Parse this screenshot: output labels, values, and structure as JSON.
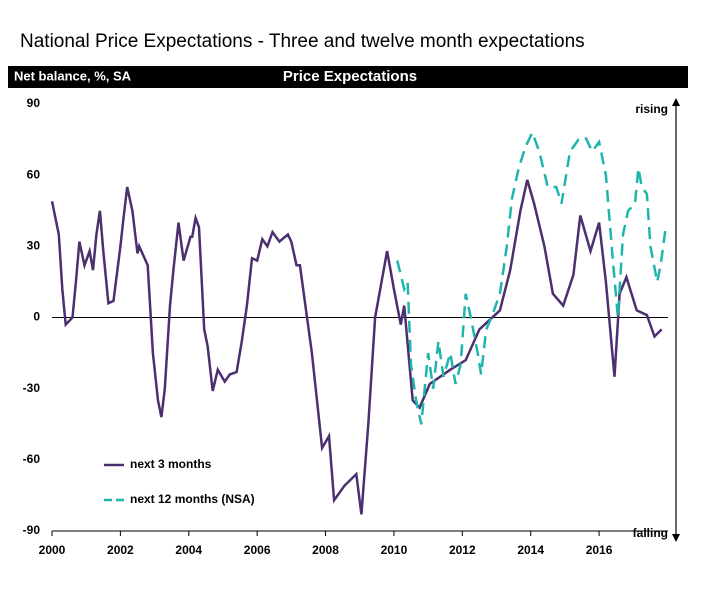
{
  "chart_data": {
    "type": "line",
    "title": "National Price Expectations - Three and twelve month expectations",
    "subtitle": "Price Expectations",
    "y_label": "Net balance, %, SA",
    "annotations": [
      "rising",
      "falling"
    ],
    "xlim": [
      2000,
      2018.25
    ],
    "xticks": [
      2000,
      2002,
      2004,
      2006,
      2008,
      2010,
      2012,
      2014,
      2016
    ],
    "ylim": [
      -90,
      90
    ],
    "yticks": [
      -90,
      -60,
      -30,
      0,
      30,
      60,
      90
    ],
    "grid": false,
    "legend": "lower left",
    "series": [
      {
        "name": "next 3 months",
        "color": "#4b2f6e",
        "x": [
          2000.0,
          2000.2,
          2000.3,
          2000.4,
          2000.6,
          2000.7,
          2000.8,
          2000.95,
          2001.1,
          2001.2,
          2001.3,
          2001.4,
          2001.5,
          2001.65,
          2001.8,
          2002.0,
          2002.1,
          2002.2,
          2002.35,
          2002.5,
          2002.55,
          2002.8,
          2002.95,
          2003.1,
          2003.2,
          2003.3,
          2003.45,
          2003.55,
          2003.7,
          2003.85,
          2004.05,
          2004.1,
          2004.2,
          2004.3,
          2004.45,
          2004.55,
          2004.7,
          2004.85,
          2005.05,
          2005.2,
          2005.4,
          2005.55,
          2005.7,
          2005.85,
          2006.0,
          2006.15,
          2006.3,
          2006.45,
          2006.65,
          2006.9,
          2007.0,
          2007.15,
          2007.25,
          2007.6,
          2007.9,
          2008.1,
          2008.25,
          2008.55,
          2008.9,
          2009.05,
          2009.25,
          2009.45,
          2009.8,
          2010.0,
          2010.2,
          2010.3,
          2010.55,
          2010.75,
          2011.05,
          2011.65,
          2012.1,
          2012.5,
          2013.1,
          2013.4,
          2013.7,
          2013.9,
          2014.1,
          2014.4,
          2014.65,
          2014.95,
          2015.25,
          2015.45,
          2015.75,
          2016.0,
          2016.2,
          2016.45,
          2016.6,
          2016.8,
          2017.1,
          2017.4,
          2017.62,
          2017.83
        ],
        "values": [
          49,
          35,
          12,
          -3,
          0,
          15,
          32,
          22,
          28,
          20,
          35,
          45,
          28,
          6,
          7,
          30,
          43,
          55,
          45,
          27,
          30,
          22,
          -15,
          -35,
          -42,
          -30,
          5,
          20,
          40,
          24,
          34,
          34,
          42,
          38,
          -5,
          -12,
          -31,
          -22,
          -27,
          -24,
          -23,
          -10,
          5,
          25,
          24,
          33,
          30,
          36,
          32,
          35,
          32,
          22,
          22,
          -15,
          -55,
          -50,
          -77,
          -71,
          -66,
          -83,
          -45,
          0,
          28,
          12,
          -3,
          5,
          -35,
          -38,
          -28,
          -22,
          -18,
          -5,
          3,
          20,
          45,
          58,
          48,
          30,
          10,
          5,
          18,
          43,
          28,
          40,
          15,
          -25,
          10,
          17,
          3,
          1,
          -8,
          -5
        ]
      },
      {
        "name": "next 12 months (NSA)",
        "color": "#1fb5ad",
        "x": [
          2010.1,
          2010.3,
          2010.4,
          2010.5,
          2010.65,
          2010.8,
          2011.0,
          2011.15,
          2011.3,
          2011.45,
          2011.65,
          2011.8,
          2011.95,
          2012.1,
          2012.25,
          2012.45,
          2012.55,
          2012.7,
          2012.85,
          2013.1,
          2013.3,
          2013.45,
          2013.65,
          2013.85,
          2014.05,
          2014.25,
          2014.5,
          2014.75,
          2014.9,
          2015.15,
          2015.4,
          2015.6,
          2015.8,
          2016.0,
          2016.2,
          2016.4,
          2016.55,
          2016.7,
          2016.85,
          2017.05,
          2017.15,
          2017.25,
          2017.4,
          2017.5,
          2017.7,
          2017.8,
          2017.95
        ],
        "values": [
          24,
          12,
          15,
          -20,
          -35,
          -45,
          -15,
          -30,
          -10,
          -25,
          -15,
          -28,
          -20,
          10,
          0,
          -15,
          -24,
          -5,
          0,
          10,
          30,
          50,
          63,
          72,
          78,
          70,
          55,
          55,
          48,
          70,
          75,
          76,
          70,
          74,
          60,
          25,
          0,
          35,
          45,
          48,
          63,
          55,
          52,
          30,
          15,
          22,
          38
        ]
      }
    ]
  }
}
